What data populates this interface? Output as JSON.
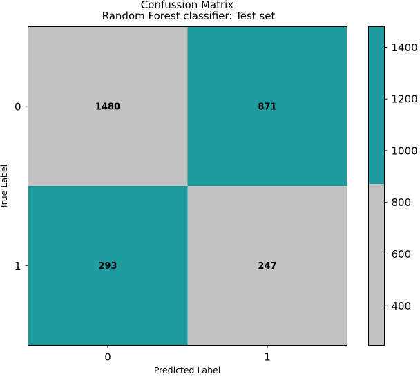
{
  "chart_data": {
    "type": "heatmap",
    "title": "Confussion Matrix",
    "subtitle": "Random Forest classifier: Test set",
    "xlabel": "Predicted Label",
    "ylabel": "True Label",
    "x_categories": [
      "0",
      "1"
    ],
    "y_categories": [
      "0",
      "1"
    ],
    "values": [
      [
        1480,
        871
      ],
      [
        293,
        247
      ]
    ],
    "colorbar": {
      "ticks": [
        400,
        600,
        800,
        1000,
        1200,
        1400
      ],
      "range": [
        247,
        1480
      ],
      "threshold": 871,
      "low_color": "#c0c0c0",
      "high_color": "#1e9c9f"
    },
    "cell_colors": [
      [
        "#c0c0c0",
        "#1e9c9f"
      ],
      [
        "#1e9c9f",
        "#c0c0c0"
      ]
    ]
  }
}
